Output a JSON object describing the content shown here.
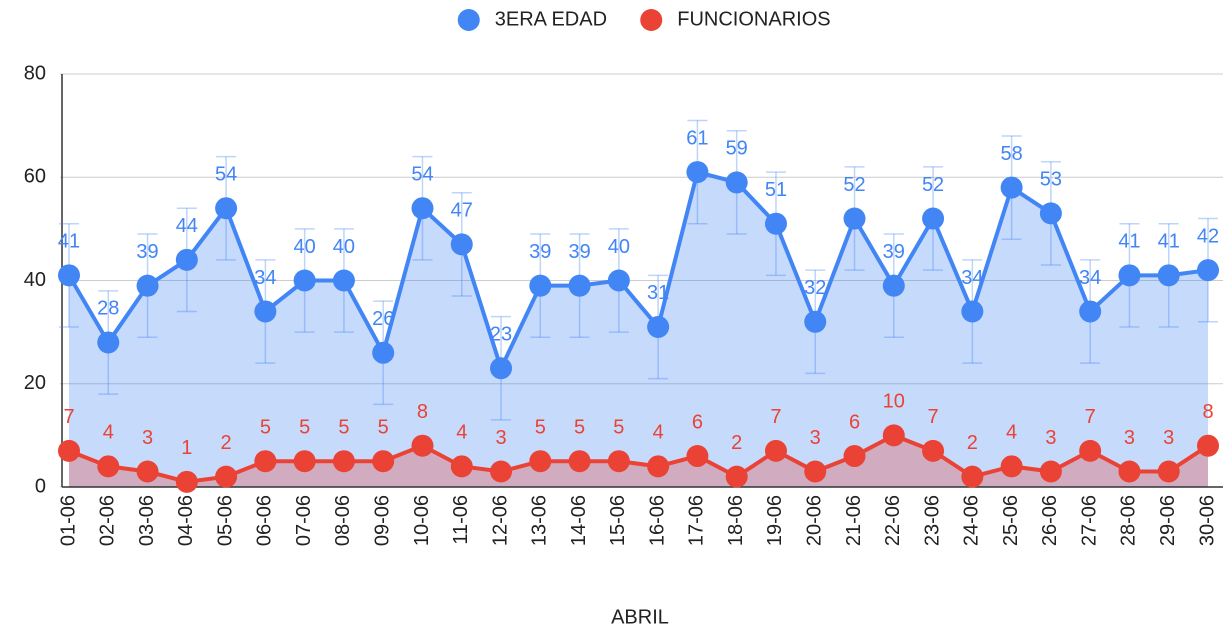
{
  "chart_data": {
    "type": "area",
    "x_label": "ABRIL",
    "categories": [
      "01-06",
      "02-06",
      "03-06",
      "04-06",
      "05-06",
      "06-06",
      "07-06",
      "08-06",
      "09-06",
      "10-06",
      "11-06",
      "12-06",
      "13-06",
      "14-06",
      "15-06",
      "16-06",
      "17-06",
      "18-06",
      "19-06",
      "20-06",
      "21-06",
      "22-06",
      "23-06",
      "24-06",
      "25-06",
      "26-06",
      "27-06",
      "28-06",
      "29-06",
      "30-06"
    ],
    "series": [
      {
        "name": "3ERA EDAD",
        "color": "#4285f4",
        "error": 10,
        "values": [
          41,
          28,
          39,
          44,
          54,
          34,
          40,
          40,
          26,
          54,
          47,
          23,
          39,
          39,
          40,
          31,
          61,
          59,
          51,
          32,
          52,
          39,
          52,
          34,
          58,
          53,
          34,
          41,
          41,
          42
        ]
      },
      {
        "name": "FUNCIONARIOS",
        "color": "#ea4335",
        "values": [
          7,
          4,
          3,
          1,
          2,
          5,
          5,
          5,
          5,
          8,
          4,
          3,
          5,
          5,
          5,
          4,
          6,
          2,
          7,
          3,
          6,
          10,
          7,
          2,
          4,
          3,
          7,
          3,
          3,
          8
        ]
      }
    ],
    "ylim": [
      0,
      80
    ],
    "yticks": [
      0,
      20,
      40,
      60,
      80
    ],
    "grid": true,
    "legend": "top"
  }
}
